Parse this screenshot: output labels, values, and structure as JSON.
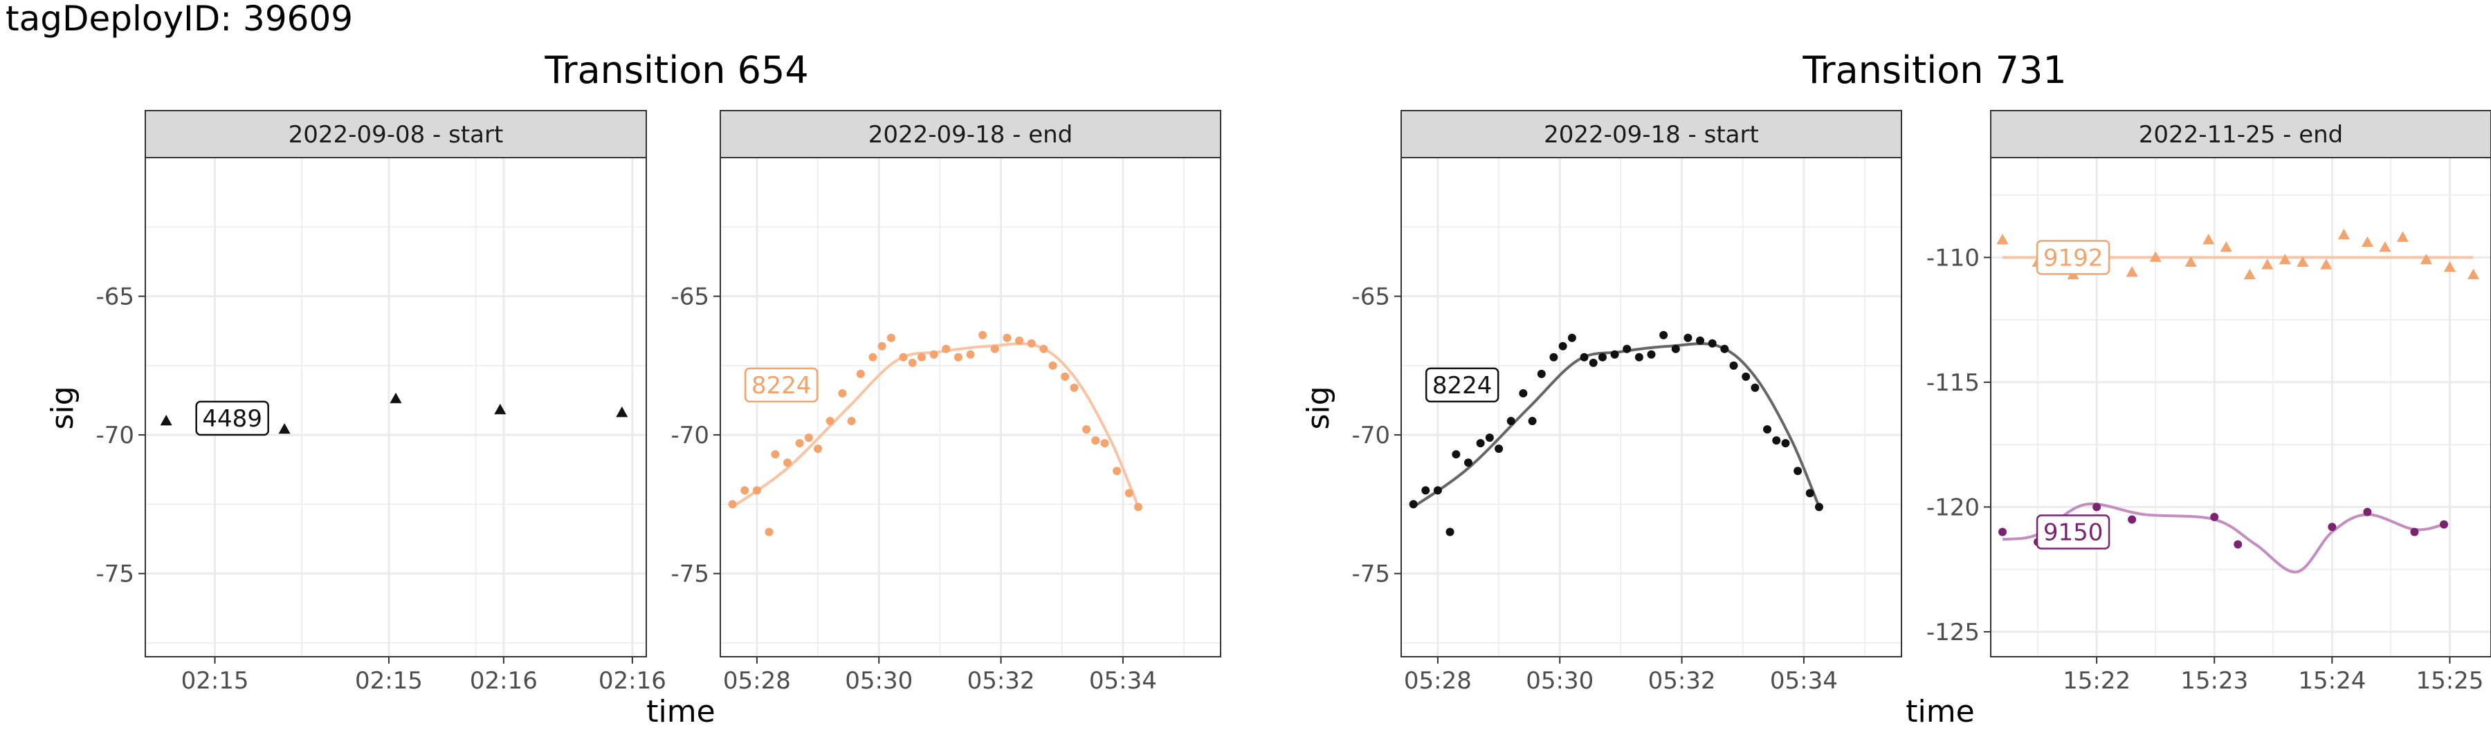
{
  "figure": {
    "title": "tagDeployID: 39609",
    "xlabel": "time",
    "ylabel": "sig"
  },
  "colors": {
    "orange": "#F4A36C",
    "orange_line": "#F8C4A4",
    "black": "#111111",
    "black_line": "#666666",
    "purple": "#7B2270",
    "purple_line": "#C48CC0",
    "strip_bg": "#D9D9D9",
    "grid": "#EBEBEB"
  },
  "chart_data": [
    {
      "type": "scatter",
      "group": "Transition 654",
      "panel": "2022-09-08 - start",
      "x_unit": "minutes after 02:14",
      "xlim": [
        0.8,
        2.24
      ],
      "ylim": [
        -78.0,
        -60.0
      ],
      "x_ticks": [
        {
          "v": 1.0,
          "label": "02:15"
        },
        {
          "v": 1.5,
          "label": "02:15"
        },
        {
          "v": 1.83,
          "label": "02:16"
        },
        {
          "v": 2.2,
          "label": "02:16"
        }
      ],
      "y_ticks": [
        {
          "v": -65,
          "label": "-65"
        },
        {
          "v": -70,
          "label": "-70"
        },
        {
          "v": -75,
          "label": "-75"
        }
      ],
      "show_y_axis": true,
      "series": [
        {
          "color": "black",
          "shape": "triangle",
          "smooth": false,
          "points": [
            [
              0.86,
              -69.5
            ],
            [
              1.2,
              -69.8
            ],
            [
              1.52,
              -68.7
            ],
            [
              1.82,
              -69.1
            ],
            [
              2.17,
              -69.2
            ]
          ],
          "label": "4489",
          "label_at": [
            1.05,
            -69.4
          ],
          "label_color": "black"
        }
      ]
    },
    {
      "type": "scatter",
      "group": "Transition 654",
      "panel": "2022-09-18 - end",
      "x_unit": "minutes after 05:00",
      "xlim": [
        27.4,
        35.6
      ],
      "ylim": [
        -78.0,
        -60.0
      ],
      "x_ticks": [
        {
          "v": 28,
          "label": "05:28"
        },
        {
          "v": 30,
          "label": "05:30"
        },
        {
          "v": 32,
          "label": "05:32"
        },
        {
          "v": 34,
          "label": "05:34"
        }
      ],
      "y_ticks": [
        {
          "v": -65,
          "label": "-65"
        },
        {
          "v": -70,
          "label": "-70"
        },
        {
          "v": -75,
          "label": "-75"
        }
      ],
      "show_y_axis": true,
      "series": [
        {
          "color": "orange",
          "line_color": "orange_line",
          "shape": "circle",
          "smooth": true,
          "points": [
            [
              27.6,
              -72.5
            ],
            [
              27.8,
              -72.0
            ],
            [
              28.0,
              -72.0
            ],
            [
              28.2,
              -73.5
            ],
            [
              28.3,
              -70.7
            ],
            [
              28.5,
              -71.0
            ],
            [
              28.7,
              -70.3
            ],
            [
              28.85,
              -70.1
            ],
            [
              29.0,
              -70.5
            ],
            [
              29.2,
              -69.5
            ],
            [
              29.4,
              -68.5
            ],
            [
              29.55,
              -69.5
            ],
            [
              29.7,
              -67.8
            ],
            [
              29.9,
              -67.2
            ],
            [
              30.05,
              -66.8
            ],
            [
              30.2,
              -66.5
            ],
            [
              30.4,
              -67.2
            ],
            [
              30.55,
              -67.4
            ],
            [
              30.7,
              -67.2
            ],
            [
              30.9,
              -67.1
            ],
            [
              31.1,
              -66.9
            ],
            [
              31.3,
              -67.2
            ],
            [
              31.5,
              -67.1
            ],
            [
              31.7,
              -66.4
            ],
            [
              31.9,
              -66.9
            ],
            [
              32.1,
              -66.5
            ],
            [
              32.3,
              -66.6
            ],
            [
              32.5,
              -66.7
            ],
            [
              32.7,
              -66.9
            ],
            [
              32.85,
              -67.5
            ],
            [
              33.05,
              -67.9
            ],
            [
              33.2,
              -68.3
            ],
            [
              33.4,
              -69.8
            ],
            [
              33.55,
              -70.2
            ],
            [
              33.7,
              -70.3
            ],
            [
              33.9,
              -71.3
            ],
            [
              34.1,
              -72.1
            ],
            [
              34.25,
              -72.6
            ]
          ],
          "curve": [
            [
              27.6,
              -72.6
            ],
            [
              28.5,
              -71.2
            ],
            [
              29.5,
              -69.0
            ],
            [
              30.3,
              -67.3
            ],
            [
              31.0,
              -67.0
            ],
            [
              31.8,
              -66.8
            ],
            [
              32.6,
              -66.8
            ],
            [
              33.2,
              -67.9
            ],
            [
              33.8,
              -70.2
            ],
            [
              34.25,
              -72.6
            ]
          ],
          "label": "8224",
          "label_at": [
            28.4,
            -68.2
          ],
          "label_color": "orange"
        }
      ]
    },
    {
      "type": "scatter",
      "group": "Transition 731",
      "panel": "2022-09-18 - start",
      "x_unit": "minutes after 05:00",
      "xlim": [
        27.4,
        35.6
      ],
      "ylim": [
        -78.0,
        -60.0
      ],
      "x_ticks": [
        {
          "v": 28,
          "label": "05:28"
        },
        {
          "v": 30,
          "label": "05:30"
        },
        {
          "v": 32,
          "label": "05:32"
        },
        {
          "v": 34,
          "label": "05:34"
        }
      ],
      "y_ticks": [
        {
          "v": -65,
          "label": "-65"
        },
        {
          "v": -70,
          "label": "-70"
        },
        {
          "v": -75,
          "label": "-75"
        }
      ],
      "show_y_axis": true,
      "series": [
        {
          "color": "black",
          "line_color": "black_line",
          "shape": "circle",
          "smooth": true,
          "points": [
            [
              27.6,
              -72.5
            ],
            [
              27.8,
              -72.0
            ],
            [
              28.0,
              -72.0
            ],
            [
              28.2,
              -73.5
            ],
            [
              28.3,
              -70.7
            ],
            [
              28.5,
              -71.0
            ],
            [
              28.7,
              -70.3
            ],
            [
              28.85,
              -70.1
            ],
            [
              29.0,
              -70.5
            ],
            [
              29.2,
              -69.5
            ],
            [
              29.4,
              -68.5
            ],
            [
              29.55,
              -69.5
            ],
            [
              29.7,
              -67.8
            ],
            [
              29.9,
              -67.2
            ],
            [
              30.05,
              -66.8
            ],
            [
              30.2,
              -66.5
            ],
            [
              30.4,
              -67.2
            ],
            [
              30.55,
              -67.4
            ],
            [
              30.7,
              -67.2
            ],
            [
              30.9,
              -67.1
            ],
            [
              31.1,
              -66.9
            ],
            [
              31.3,
              -67.2
            ],
            [
              31.5,
              -67.1
            ],
            [
              31.7,
              -66.4
            ],
            [
              31.9,
              -66.9
            ],
            [
              32.1,
              -66.5
            ],
            [
              32.3,
              -66.6
            ],
            [
              32.5,
              -66.7
            ],
            [
              32.7,
              -66.9
            ],
            [
              32.85,
              -67.5
            ],
            [
              33.05,
              -67.9
            ],
            [
              33.2,
              -68.3
            ],
            [
              33.4,
              -69.8
            ],
            [
              33.55,
              -70.2
            ],
            [
              33.7,
              -70.3
            ],
            [
              33.9,
              -71.3
            ],
            [
              34.1,
              -72.1
            ],
            [
              34.25,
              -72.6
            ]
          ],
          "curve": [
            [
              27.6,
              -72.6
            ],
            [
              28.5,
              -71.2
            ],
            [
              29.5,
              -69.0
            ],
            [
              30.3,
              -67.3
            ],
            [
              31.0,
              -67.0
            ],
            [
              31.8,
              -66.8
            ],
            [
              32.6,
              -66.8
            ],
            [
              33.2,
              -67.9
            ],
            [
              33.8,
              -70.2
            ],
            [
              34.25,
              -72.6
            ]
          ],
          "label": "8224",
          "label_at": [
            28.4,
            -68.2
          ],
          "label_color": "black"
        }
      ]
    },
    {
      "type": "scatter",
      "group": "Transition 731",
      "panel": "2022-11-25 - end",
      "x_unit": "minutes after 15:00",
      "xlim": [
        21.1,
        25.35
      ],
      "ylim": [
        -126.0,
        -106.0
      ],
      "x_ticks": [
        {
          "v": 22,
          "label": "15:22"
        },
        {
          "v": 23,
          "label": "15:23"
        },
        {
          "v": 24,
          "label": "15:24"
        },
        {
          "v": 25,
          "label": "15:25"
        }
      ],
      "y_ticks": [
        {
          "v": -110,
          "label": "-110"
        },
        {
          "v": -115,
          "label": "-115"
        },
        {
          "v": -120,
          "label": "-120"
        },
        {
          "v": -125,
          "label": "-125"
        }
      ],
      "show_y_axis": true,
      "series": [
        {
          "color": "orange",
          "line_color": "orange_line",
          "shape": "triangle",
          "smooth": true,
          "points": [
            [
              21.2,
              -109.3
            ],
            [
              21.5,
              -110.2
            ],
            [
              21.8,
              -110.7
            ],
            [
              22.0,
              -110.1
            ],
            [
              22.3,
              -110.6
            ],
            [
              22.5,
              -110.0
            ],
            [
              22.8,
              -110.2
            ],
            [
              22.95,
              -109.3
            ],
            [
              23.1,
              -109.6
            ],
            [
              23.3,
              -110.7
            ],
            [
              23.45,
              -110.3
            ],
            [
              23.6,
              -110.1
            ],
            [
              23.75,
              -110.2
            ],
            [
              23.95,
              -110.3
            ],
            [
              24.1,
              -109.1
            ],
            [
              24.3,
              -109.4
            ],
            [
              24.45,
              -109.6
            ],
            [
              24.6,
              -109.2
            ],
            [
              24.8,
              -110.1
            ],
            [
              25.0,
              -110.4
            ],
            [
              25.2,
              -110.7
            ]
          ],
          "curve": [
            [
              21.2,
              -110.0
            ],
            [
              22.5,
              -110.0
            ],
            [
              24.0,
              -110.0
            ],
            [
              25.2,
              -110.0
            ]
          ],
          "label": "9192",
          "label_at": [
            21.8,
            -110.0
          ],
          "label_color": "orange"
        },
        {
          "color": "purple",
          "line_color": "purple_line",
          "shape": "circle",
          "smooth": true,
          "points": [
            [
              21.2,
              -121.0
            ],
            [
              21.5,
              -121.4
            ],
            [
              22.0,
              -120.0
            ],
            [
              22.3,
              -120.5
            ],
            [
              23.0,
              -120.4
            ],
            [
              23.2,
              -121.5
            ],
            [
              24.0,
              -120.8
            ],
            [
              24.3,
              -120.2
            ],
            [
              24.7,
              -121.0
            ],
            [
              24.95,
              -120.7
            ]
          ],
          "curve": [
            [
              21.2,
              -121.3
            ],
            [
              21.5,
              -121.1
            ],
            [
              21.9,
              -119.9
            ],
            [
              22.4,
              -120.3
            ],
            [
              23.0,
              -120.5
            ],
            [
              23.35,
              -121.5
            ],
            [
              23.7,
              -122.6
            ],
            [
              24.0,
              -121.0
            ],
            [
              24.3,
              -120.3
            ],
            [
              24.7,
              -120.9
            ],
            [
              24.95,
              -120.7
            ]
          ],
          "label": "9150",
          "label_at": [
            21.8,
            -121.0
          ],
          "label_color": "purple"
        }
      ]
    }
  ]
}
